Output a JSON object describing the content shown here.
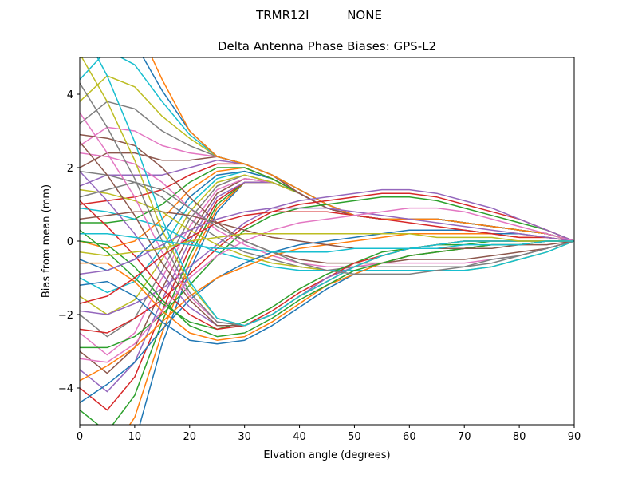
{
  "suptitle": "TRMR12I          NONE",
  "chart_data": {
    "type": "line",
    "title": "Delta Antenna Phase Biases: GPS-L2",
    "xlabel": "Elvation angle (degrees)",
    "ylabel": "Bias from mean (mm)",
    "xlim": [
      0,
      90
    ],
    "ylim": [
      -5,
      5
    ],
    "xticks": [
      "0",
      "10",
      "20",
      "30",
      "40",
      "50",
      "60",
      "70",
      "80",
      "90"
    ],
    "yticks": [
      "−4",
      "−2",
      "0",
      "2",
      "4"
    ],
    "x": [
      0,
      5,
      10,
      15,
      20,
      25,
      30,
      35,
      40,
      45,
      50,
      55,
      60,
      65,
      70,
      75,
      80,
      85,
      90
    ],
    "grid": false,
    "legend": "none",
    "colors": [
      "#1f77b4",
      "#ff7f0e",
      "#2ca02c",
      "#d62728",
      "#9467bd",
      "#8c564b",
      "#e377c2",
      "#7f7f7f",
      "#bcbd22",
      "#17becf"
    ],
    "series": [
      {
        "values": [
          -5.8,
          -6.6,
          -5.5,
          -2.8,
          -0.8,
          0.8,
          1.6,
          1.6,
          1.3,
          0.9,
          0.7,
          0.6,
          0.6,
          0.6,
          0.5,
          0.4,
          0.3,
          0.2,
          0.0
        ]
      },
      {
        "values": [
          -5.2,
          -5.9,
          -4.8,
          -2.5,
          -0.6,
          0.9,
          1.6,
          1.6,
          1.3,
          0.9,
          0.7,
          0.6,
          0.6,
          0.6,
          0.5,
          0.4,
          0.3,
          0.2,
          0.0
        ]
      },
      {
        "values": [
          -4.6,
          -5.2,
          -4.2,
          -2.2,
          -0.4,
          1.0,
          1.6,
          1.6,
          1.3,
          0.9,
          0.7,
          0.6,
          0.6,
          0.6,
          0.5,
          0.4,
          0.3,
          0.2,
          0.0
        ]
      },
      {
        "values": [
          -4.0,
          -4.6,
          -3.7,
          -1.9,
          -0.2,
          1.1,
          1.6,
          1.6,
          1.3,
          0.9,
          0.7,
          0.6,
          0.6,
          0.6,
          0.5,
          0.4,
          0.3,
          0.2,
          0.0
        ]
      },
      {
        "values": [
          -3.5,
          -4.1,
          -3.3,
          -1.6,
          0.0,
          1.2,
          1.6,
          1.6,
          1.3,
          0.9,
          0.7,
          0.6,
          0.6,
          0.6,
          0.5,
          0.4,
          0.3,
          0.2,
          0.0
        ]
      },
      {
        "values": [
          -3.0,
          -3.6,
          -2.9,
          -1.3,
          0.2,
          1.3,
          1.7,
          1.6,
          1.3,
          0.9,
          0.7,
          0.6,
          0.6,
          0.6,
          0.5,
          0.4,
          0.3,
          0.2,
          0.0
        ]
      },
      {
        "values": [
          -2.5,
          -3.1,
          -2.5,
          -1.0,
          0.4,
          1.4,
          1.7,
          1.6,
          1.3,
          0.9,
          0.7,
          0.6,
          0.6,
          0.6,
          0.5,
          0.4,
          0.3,
          0.2,
          0.0
        ]
      },
      {
        "values": [
          -2.0,
          -2.6,
          -2.1,
          -0.8,
          0.6,
          1.5,
          1.8,
          1.6,
          1.3,
          0.9,
          0.7,
          0.6,
          0.6,
          0.6,
          0.5,
          0.4,
          0.3,
          0.2,
          0.0
        ]
      },
      {
        "values": [
          -1.5,
          -2.0,
          -1.6,
          -0.5,
          0.8,
          1.6,
          1.8,
          1.6,
          1.3,
          0.9,
          0.7,
          0.6,
          0.6,
          0.6,
          0.5,
          0.4,
          0.3,
          0.2,
          0.0
        ]
      },
      {
        "values": [
          -1.0,
          -1.4,
          -1.1,
          -0.2,
          1.0,
          1.7,
          1.9,
          1.7,
          1.3,
          0.9,
          0.7,
          0.6,
          0.6,
          0.6,
          0.5,
          0.4,
          0.3,
          0.2,
          0.0
        ]
      },
      {
        "values": [
          -0.5,
          -0.8,
          -0.5,
          0.2,
          1.2,
          1.8,
          1.9,
          1.7,
          1.3,
          0.9,
          0.7,
          0.6,
          0.6,
          0.6,
          0.5,
          0.4,
          0.3,
          0.2,
          0.0
        ]
      },
      {
        "values": [
          0.0,
          -0.2,
          0.0,
          0.6,
          1.4,
          1.9,
          2.0,
          1.7,
          1.3,
          0.9,
          0.7,
          0.6,
          0.6,
          0.6,
          0.5,
          0.4,
          0.3,
          0.2,
          0.0
        ]
      },
      {
        "values": [
          0.5,
          0.5,
          0.6,
          1.0,
          1.6,
          2.0,
          2.0,
          1.7,
          1.3,
          0.9,
          0.7,
          0.6,
          0.6,
          0.6,
          0.5,
          0.4,
          0.3,
          0.2,
          0.0
        ]
      },
      {
        "values": [
          1.0,
          1.1,
          1.2,
          1.4,
          1.8,
          2.1,
          2.1,
          1.8,
          1.3,
          0.9,
          0.7,
          0.6,
          0.6,
          0.6,
          0.5,
          0.4,
          0.3,
          0.2,
          0.0
        ]
      },
      {
        "values": [
          1.5,
          1.8,
          1.8,
          1.8,
          2.0,
          2.2,
          2.1,
          1.8,
          1.3,
          0.9,
          0.7,
          0.6,
          0.6,
          0.6,
          0.5,
          0.4,
          0.3,
          0.2,
          0.0
        ]
      },
      {
        "values": [
          2.0,
          2.4,
          2.4,
          2.2,
          2.2,
          2.3,
          2.1,
          1.8,
          1.3,
          0.9,
          0.7,
          0.6,
          0.6,
          0.6,
          0.5,
          0.4,
          0.3,
          0.2,
          0.0
        ]
      },
      {
        "values": [
          2.6,
          3.1,
          3.0,
          2.6,
          2.4,
          2.3,
          2.1,
          1.8,
          1.4,
          1.0,
          0.7,
          0.6,
          0.6,
          0.6,
          0.5,
          0.4,
          0.3,
          0.2,
          0.0
        ]
      },
      {
        "values": [
          3.2,
          3.8,
          3.6,
          3.0,
          2.6,
          2.3,
          2.1,
          1.8,
          1.4,
          1.0,
          0.7,
          0.6,
          0.6,
          0.6,
          0.5,
          0.4,
          0.3,
          0.2,
          0.0
        ]
      },
      {
        "values": [
          3.8,
          4.5,
          4.2,
          3.4,
          2.8,
          2.3,
          2.1,
          1.8,
          1.4,
          1.0,
          0.7,
          0.6,
          0.6,
          0.6,
          0.5,
          0.4,
          0.3,
          0.2,
          0.0
        ]
      },
      {
        "values": [
          4.4,
          5.2,
          4.8,
          3.8,
          2.9,
          2.3,
          2.1,
          1.8,
          1.4,
          1.0,
          0.7,
          0.6,
          0.6,
          0.6,
          0.5,
          0.4,
          0.3,
          0.2,
          0.0
        ]
      },
      {
        "values": [
          5.0,
          5.9,
          5.4,
          4.1,
          3.0,
          2.3,
          2.1,
          1.8,
          1.4,
          1.0,
          0.7,
          0.6,
          0.6,
          0.6,
          0.5,
          0.4,
          0.3,
          0.2,
          0.0
        ]
      },
      {
        "values": [
          5.6,
          6.6,
          6.0,
          4.4,
          3.0,
          2.3,
          2.1,
          1.8,
          1.4,
          1.0,
          0.7,
          0.6,
          0.6,
          0.6,
          0.5,
          0.4,
          0.3,
          0.2,
          0.0
        ]
      },
      {
        "values": [
          -2.9,
          -2.9,
          -2.6,
          -2.0,
          -1.2,
          -0.4,
          0.3,
          0.7,
          0.9,
          1.0,
          1.1,
          1.2,
          1.2,
          1.1,
          0.9,
          0.7,
          0.5,
          0.3,
          0.0
        ]
      },
      {
        "values": [
          -2.4,
          -2.5,
          -2.1,
          -1.6,
          -0.9,
          -0.2,
          0.4,
          0.8,
          1.0,
          1.1,
          1.2,
          1.3,
          1.3,
          1.2,
          1.0,
          0.8,
          0.6,
          0.3,
          0.0
        ]
      },
      {
        "values": [
          -1.9,
          -2.0,
          -1.7,
          -1.3,
          -0.7,
          -0.1,
          0.5,
          0.9,
          1.1,
          1.2,
          1.3,
          1.4,
          1.4,
          1.3,
          1.1,
          0.9,
          0.6,
          0.3,
          0.0
        ]
      },
      {
        "values": [
          2.9,
          2.8,
          2.6,
          2.0,
          1.2,
          0.5,
          0.0,
          -0.3,
          -0.5,
          -0.6,
          -0.6,
          -0.6,
          -0.5,
          -0.5,
          -0.5,
          -0.4,
          -0.3,
          -0.2,
          0.0
        ]
      },
      {
        "values": [
          2.4,
          2.3,
          2.1,
          1.6,
          0.9,
          0.3,
          -0.1,
          -0.4,
          -0.6,
          -0.7,
          -0.7,
          -0.6,
          -0.6,
          -0.6,
          -0.6,
          -0.5,
          -0.4,
          -0.2,
          0.0
        ]
      },
      {
        "values": [
          1.9,
          1.8,
          1.6,
          1.2,
          0.6,
          0.1,
          -0.3,
          -0.5,
          -0.7,
          -0.8,
          -0.7,
          -0.7,
          -0.7,
          -0.7,
          -0.7,
          -0.6,
          -0.4,
          -0.2,
          0.0
        ]
      },
      {
        "values": [
          1.4,
          1.3,
          1.1,
          0.8,
          0.3,
          -0.1,
          -0.4,
          -0.6,
          -0.7,
          -0.8,
          -0.8,
          -0.8,
          -0.8,
          -0.8,
          -0.8,
          -0.7,
          -0.5,
          -0.3,
          0.0
        ]
      },
      {
        "values": [
          0.9,
          0.8,
          0.6,
          0.4,
          0.0,
          -0.3,
          -0.5,
          -0.7,
          -0.8,
          -0.8,
          -0.8,
          -0.8,
          -0.8,
          -0.8,
          -0.8,
          -0.7,
          -0.5,
          -0.3,
          0.0
        ]
      },
      {
        "values": [
          -4.4,
          -3.9,
          -3.3,
          -2.4,
          -1.6,
          -1.0,
          -0.6,
          -0.3,
          -0.1,
          0.0,
          0.1,
          0.2,
          0.3,
          0.3,
          0.3,
          0.2,
          0.2,
          0.1,
          0.0
        ]
      },
      {
        "values": [
          -3.8,
          -3.4,
          -2.9,
          -2.2,
          -1.5,
          -1.0,
          -0.7,
          -0.4,
          -0.2,
          -0.1,
          0.0,
          0.1,
          0.2,
          0.2,
          0.2,
          0.2,
          0.1,
          0.1,
          0.0
        ]
      },
      {
        "values": [
          0.3,
          -0.3,
          -1.0,
          -1.7,
          -2.2,
          -2.4,
          -2.2,
          -1.8,
          -1.3,
          -0.9,
          -0.6,
          -0.3,
          -0.2,
          -0.1,
          -0.1,
          0.0,
          0.0,
          0.0,
          0.0
        ]
      },
      {
        "values": [
          1.1,
          0.4,
          -0.4,
          -1.3,
          -2.0,
          -2.4,
          -2.3,
          -1.9,
          -1.4,
          -1.0,
          -0.6,
          -0.4,
          -0.2,
          -0.1,
          0.0,
          0.0,
          0.0,
          0.0,
          0.0
        ]
      },
      {
        "values": [
          1.9,
          1.1,
          0.2,
          -0.9,
          -1.8,
          -2.3,
          -2.3,
          -2.0,
          -1.5,
          -1.0,
          -0.7,
          -0.4,
          -0.2,
          -0.1,
          0.0,
          0.0,
          0.0,
          0.0,
          0.0
        ]
      },
      {
        "values": [
          2.7,
          1.8,
          0.7,
          -0.6,
          -1.6,
          -2.3,
          -2.3,
          -2.0,
          -1.5,
          -1.1,
          -0.7,
          -0.4,
          -0.2,
          -0.1,
          0.0,
          0.0,
          0.0,
          0.0,
          0.0
        ]
      },
      {
        "values": [
          3.5,
          2.4,
          1.2,
          -0.3,
          -1.5,
          -2.2,
          -2.3,
          -2.0,
          -1.5,
          -1.1,
          -0.7,
          -0.4,
          -0.2,
          -0.1,
          0.0,
          0.0,
          0.0,
          0.0,
          0.0
        ]
      },
      {
        "values": [
          4.3,
          3.1,
          1.7,
          0.0,
          -1.4,
          -2.2,
          -2.3,
          -2.0,
          -1.5,
          -1.1,
          -0.7,
          -0.4,
          -0.2,
          -0.1,
          0.0,
          0.0,
          0.0,
          0.0,
          0.0
        ]
      },
      {
        "values": [
          5.1,
          3.8,
          2.2,
          0.3,
          -1.2,
          -2.1,
          -2.3,
          -2.0,
          -1.5,
          -1.1,
          -0.7,
          -0.4,
          -0.2,
          -0.1,
          0.0,
          0.0,
          0.0,
          0.0,
          0.0
        ]
      },
      {
        "values": [
          5.9,
          4.5,
          2.7,
          0.6,
          -1.1,
          -2.1,
          -2.3,
          -2.0,
          -1.5,
          -1.1,
          -0.7,
          -0.4,
          -0.2,
          -0.1,
          0.0,
          0.0,
          0.0,
          0.0,
          0.0
        ]
      },
      {
        "values": [
          -1.2,
          -1.1,
          -1.5,
          -2.2,
          -2.7,
          -2.8,
          -2.7,
          -2.3,
          -1.8,
          -1.3,
          -0.9,
          -0.6,
          -0.4,
          -0.3,
          -0.2,
          -0.1,
          -0.1,
          0.0,
          0.0
        ]
      },
      {
        "values": [
          -0.6,
          -0.6,
          -1.1,
          -1.9,
          -2.5,
          -2.7,
          -2.6,
          -2.2,
          -1.7,
          -1.2,
          -0.9,
          -0.6,
          -0.4,
          -0.3,
          -0.2,
          -0.1,
          -0.1,
          0.0,
          0.0
        ]
      },
      {
        "values": [
          0.0,
          -0.1,
          -0.7,
          -1.6,
          -2.3,
          -2.6,
          -2.5,
          -2.1,
          -1.6,
          -1.2,
          -0.8,
          -0.6,
          -0.4,
          -0.3,
          -0.2,
          -0.1,
          -0.1,
          0.0,
          0.0
        ]
      },
      {
        "values": [
          -1.7,
          -1.5,
          -1.0,
          -0.4,
          0.1,
          0.5,
          0.7,
          0.8,
          0.8,
          0.8,
          0.7,
          0.6,
          0.5,
          0.4,
          0.3,
          0.2,
          0.1,
          0.1,
          0.0
        ]
      },
      {
        "values": [
          -0.9,
          -0.8,
          -0.5,
          -0.1,
          0.3,
          0.6,
          0.8,
          0.9,
          0.9,
          0.9,
          0.8,
          0.7,
          0.6,
          0.5,
          0.4,
          0.3,
          0.2,
          0.1,
          0.0
        ]
      },
      {
        "values": [
          0.6,
          0.7,
          0.8,
          0.8,
          0.7,
          0.5,
          0.3,
          0.1,
          0.0,
          -0.1,
          -0.2,
          -0.2,
          -0.2,
          -0.2,
          -0.2,
          -0.2,
          -0.1,
          -0.1,
          0.0
        ]
      },
      {
        "values": [
          -3.2,
          -3.3,
          -2.8,
          -1.9,
          -1.0,
          -0.4,
          0.0,
          0.3,
          0.5,
          0.6,
          0.7,
          0.8,
          0.9,
          0.9,
          0.8,
          0.6,
          0.4,
          0.2,
          0.0
        ]
      },
      {
        "values": [
          1.2,
          1.4,
          1.6,
          1.4,
          0.9,
          0.4,
          0.0,
          -0.3,
          -0.6,
          -0.8,
          -0.9,
          -0.9,
          -0.9,
          -0.8,
          -0.7,
          -0.5,
          -0.4,
          -0.2,
          0.0
        ]
      },
      {
        "values": [
          -0.3,
          -0.4,
          -0.3,
          -0.2,
          0.0,
          0.1,
          0.2,
          0.2,
          0.2,
          0.2,
          0.2,
          0.2,
          0.2,
          0.1,
          0.1,
          0.1,
          0.0,
          0.0,
          0.0
        ]
      },
      {
        "values": [
          0.2,
          0.2,
          0.1,
          0.0,
          -0.1,
          -0.2,
          -0.2,
          -0.3,
          -0.3,
          -0.3,
          -0.2,
          -0.2,
          -0.2,
          -0.2,
          -0.1,
          -0.1,
          -0.1,
          0.0,
          0.0
        ]
      }
    ]
  }
}
